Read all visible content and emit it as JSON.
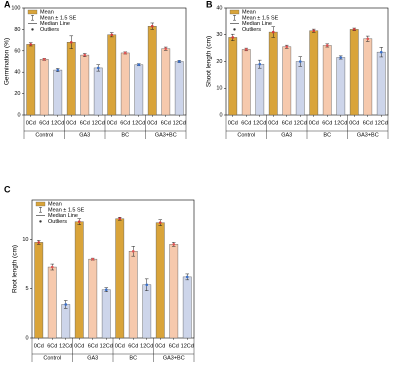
{
  "chart_data": [
    {
      "type": "bar",
      "label": "A",
      "ylabel": "Germination (%)",
      "categories": [
        "Control",
        "GA3",
        "BC",
        "GA3+BC"
      ],
      "series": [
        {
          "name": "0Cd",
          "color": "#d9a43a",
          "values": [
            66,
            68,
            75,
            83
          ],
          "errors": [
            1.5,
            6,
            2,
            3
          ]
        },
        {
          "name": "6Cd",
          "color": "#f6c9ad",
          "values": [
            52,
            56,
            58,
            62
          ],
          "errors": [
            1,
            1.5,
            1,
            1.5
          ]
        },
        {
          "name": "12Cd",
          "color": "#cdd5ea",
          "values": [
            42,
            44,
            47,
            50
          ],
          "errors": [
            1.5,
            3,
            1,
            1
          ]
        }
      ],
      "ylim": [
        0,
        100
      ],
      "yticks": [
        0,
        20,
        40,
        60,
        80,
        100
      ],
      "legend": [
        "Mean",
        "Mean ± 1.5 SE",
        "Median Line",
        "Outliers"
      ]
    },
    {
      "type": "bar",
      "label": "B",
      "ylabel": "Shoot length (cm)",
      "categories": [
        "Control",
        "GA3",
        "BC",
        "GA3+BC"
      ],
      "series": [
        {
          "name": "0Cd",
          "color": "#d9a43a",
          "values": [
            29,
            31,
            31.5,
            32
          ],
          "errors": [
            1.2,
            2,
            0.6,
            0.5
          ]
        },
        {
          "name": "6Cd",
          "color": "#f6c9ad",
          "values": [
            24.5,
            25.5,
            26,
            28.5
          ],
          "errors": [
            0.5,
            0.6,
            0.6,
            1
          ]
        },
        {
          "name": "12Cd",
          "color": "#cdd5ea",
          "values": [
            19,
            20,
            21.5,
            23.5
          ],
          "errors": [
            1.5,
            1.8,
            0.6,
            1.8
          ]
        }
      ],
      "ylim": [
        0,
        40
      ],
      "yticks": [
        0,
        10,
        20,
        30,
        40
      ],
      "legend": [
        "Mean",
        "Mean ± 1.5 SE",
        "Median Line",
        "Outliers"
      ]
    },
    {
      "type": "bar",
      "label": "C",
      "ylabel": "Root length (cm)",
      "categories": [
        "Control",
        "GA3",
        "BC",
        "GA3+BC"
      ],
      "series": [
        {
          "name": "0Cd",
          "color": "#d9a43a",
          "values": [
            9.7,
            11.8,
            12.1,
            11.7
          ],
          "errors": [
            0.2,
            0.3,
            0.15,
            0.3
          ]
        },
        {
          "name": "6Cd",
          "color": "#f6c9ad",
          "values": [
            7.2,
            8.0,
            8.8,
            9.5
          ],
          "errors": [
            0.3,
            0.1,
            0.5,
            0.2
          ]
        },
        {
          "name": "12Cd",
          "color": "#cdd5ea",
          "values": [
            3.4,
            4.9,
            5.4,
            6.2
          ],
          "errors": [
            0.4,
            0.2,
            0.6,
            0.3
          ]
        }
      ],
      "ylim": [
        0,
        14
      ],
      "yticks": [
        0,
        5,
        10
      ],
      "legend": [
        "Mean",
        "Mean ± 1.5 SE",
        "Median Line",
        "Outliers"
      ]
    }
  ]
}
